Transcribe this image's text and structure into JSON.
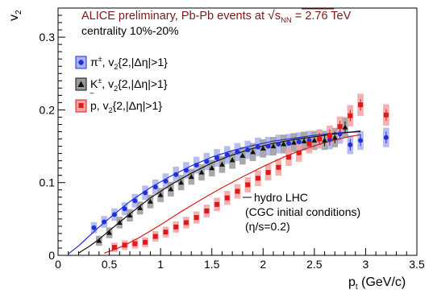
{
  "chart_data": {
    "type": "scatter",
    "title": "ALICE preliminary, Pb-Pb events at √s_NN = 2.76 TeV",
    "title_parts": {
      "prefix": "ALICE preliminary, Pb-Pb events at ",
      "sqrt_symbol": "√",
      "s": "s",
      "nn": "NN",
      "suffix": " = 2.76 TeV"
    },
    "subtitle": "centrality 10%-20%",
    "xlabel": "p",
    "xlabel_sub": "t",
    "xlabel_units": " (GeV/c)",
    "ylabel": "v",
    "ylabel_sub": "2",
    "xlim": [
      0,
      3.5
    ],
    "ylim": [
      0,
      0.34
    ],
    "xticks": [
      0,
      0.5,
      1,
      1.5,
      2,
      2.5,
      3,
      3.5
    ],
    "xtick_labels": [
      "0",
      "0.5",
      "1",
      "1.5",
      "2",
      "2.5",
      "3",
      "3.5"
    ],
    "yticks": [
      0,
      0.1,
      0.2,
      0.3
    ],
    "ytick_labels": [
      "0",
      "0.1",
      "0.2",
      "0.3"
    ],
    "grid": false,
    "legend_placement": "top-left",
    "series": [
      {
        "name": "π±, v2{2,|Δη|>1}",
        "legend_parts": {
          "particle": "π",
          "sup": "±",
          "v": ", v",
          "sub": "2",
          "rest": "{2,|Δη|>1}"
        },
        "color": "#1f2fdc",
        "syst_color": "#aab2ee",
        "marker": "circle",
        "x": [
          0.35,
          0.45,
          0.55,
          0.65,
          0.75,
          0.85,
          0.95,
          1.05,
          1.15,
          1.25,
          1.35,
          1.45,
          1.55,
          1.65,
          1.75,
          1.85,
          1.95,
          2.05,
          2.15,
          2.25,
          2.35,
          2.45,
          2.55,
          2.65,
          2.75,
          2.85,
          2.95,
          3.2
        ],
        "y": [
          0.038,
          0.046,
          0.056,
          0.064,
          0.075,
          0.086,
          0.094,
          0.102,
          0.111,
          0.117,
          0.124,
          0.129,
          0.134,
          0.138,
          0.142,
          0.145,
          0.149,
          0.15,
          0.153,
          0.154,
          0.156,
          0.158,
          0.16,
          0.159,
          0.167,
          0.152,
          0.158,
          0.162
        ]
      },
      {
        "name": "K±, v2{2,|Δη|>1}",
        "legend_parts": {
          "particle": "K",
          "sup": "±",
          "v": ", v",
          "sub": "2",
          "rest": "{2,|Δη|>1}"
        },
        "color": "#111111",
        "syst_color": "#9a9a9a",
        "marker": "triangle",
        "x": [
          0.4,
          0.5,
          0.6,
          0.7,
          0.8,
          0.9,
          1.0,
          1.1,
          1.2,
          1.3,
          1.4,
          1.5,
          1.6,
          1.7,
          1.8,
          1.9,
          2.0,
          2.1,
          2.2,
          2.3,
          2.4,
          2.5,
          2.6,
          2.7,
          2.8
        ],
        "y": [
          0.02,
          0.031,
          0.045,
          0.055,
          0.065,
          0.074,
          0.083,
          0.091,
          0.1,
          0.108,
          0.114,
          0.12,
          0.125,
          0.131,
          0.137,
          0.142,
          0.147,
          0.15,
          0.153,
          0.155,
          0.157,
          0.158,
          0.158,
          0.162,
          0.176
        ]
      },
      {
        "name": "p̄, v2{2,|Δη|>1}",
        "legend_parts": {
          "particle": "p",
          "overbar": "‾",
          "v": ", v",
          "sub": "2",
          "rest": "{2,|Δη|>1}"
        },
        "color": "#e01818",
        "syst_color": "#f2a3a3",
        "marker": "square",
        "x": [
          0.55,
          0.65,
          0.75,
          0.85,
          0.95,
          1.05,
          1.15,
          1.25,
          1.35,
          1.45,
          1.55,
          1.65,
          1.75,
          1.85,
          1.95,
          2.05,
          2.15,
          2.25,
          2.35,
          2.45,
          2.55,
          2.65,
          2.75,
          2.85,
          2.95,
          3.2
        ],
        "y": [
          0.011,
          0.014,
          0.016,
          0.018,
          0.026,
          0.032,
          0.039,
          0.045,
          0.052,
          0.061,
          0.07,
          0.079,
          0.088,
          0.097,
          0.106,
          0.114,
          0.121,
          0.135,
          0.141,
          0.153,
          0.16,
          0.165,
          0.177,
          0.192,
          0.207,
          0.193
        ]
      }
    ],
    "model_curves": {
      "label_lines": [
        "hydro LHC",
        "(CGC initial conditions)",
        "(η/s=0.2)"
      ],
      "curves": [
        {
          "color": "#1f2fdc",
          "x": [
            0.1,
            0.2,
            0.3,
            0.4,
            0.5,
            0.7,
            0.9,
            1.1,
            1.3,
            1.5,
            1.7,
            1.9,
            2.1,
            2.3,
            2.5,
            2.7,
            2.95
          ],
          "y": [
            0.002,
            0.013,
            0.026,
            0.039,
            0.051,
            0.074,
            0.093,
            0.109,
            0.123,
            0.135,
            0.144,
            0.151,
            0.157,
            0.161,
            0.165,
            0.168,
            0.17
          ]
        },
        {
          "color": "#111111",
          "x": [
            0.2,
            0.3,
            0.4,
            0.5,
            0.7,
            0.9,
            1.1,
            1.3,
            1.5,
            1.7,
            1.9,
            2.1,
            2.3,
            2.5,
            2.7,
            2.95
          ],
          "y": [
            0.003,
            0.012,
            0.022,
            0.034,
            0.057,
            0.079,
            0.097,
            0.113,
            0.127,
            0.138,
            0.147,
            0.154,
            0.159,
            0.163,
            0.167,
            0.171
          ]
        },
        {
          "color": "#e01818",
          "x": [
            0.45,
            0.55,
            0.65,
            0.8,
            1.0,
            1.2,
            1.4,
            1.6,
            1.8,
            2.0,
            2.2,
            2.4,
            2.6,
            2.8,
            2.95
          ],
          "y": [
            0.003,
            0.008,
            0.014,
            0.025,
            0.042,
            0.06,
            0.077,
            0.093,
            0.108,
            0.122,
            0.135,
            0.146,
            0.155,
            0.162,
            0.166
          ]
        }
      ]
    }
  }
}
